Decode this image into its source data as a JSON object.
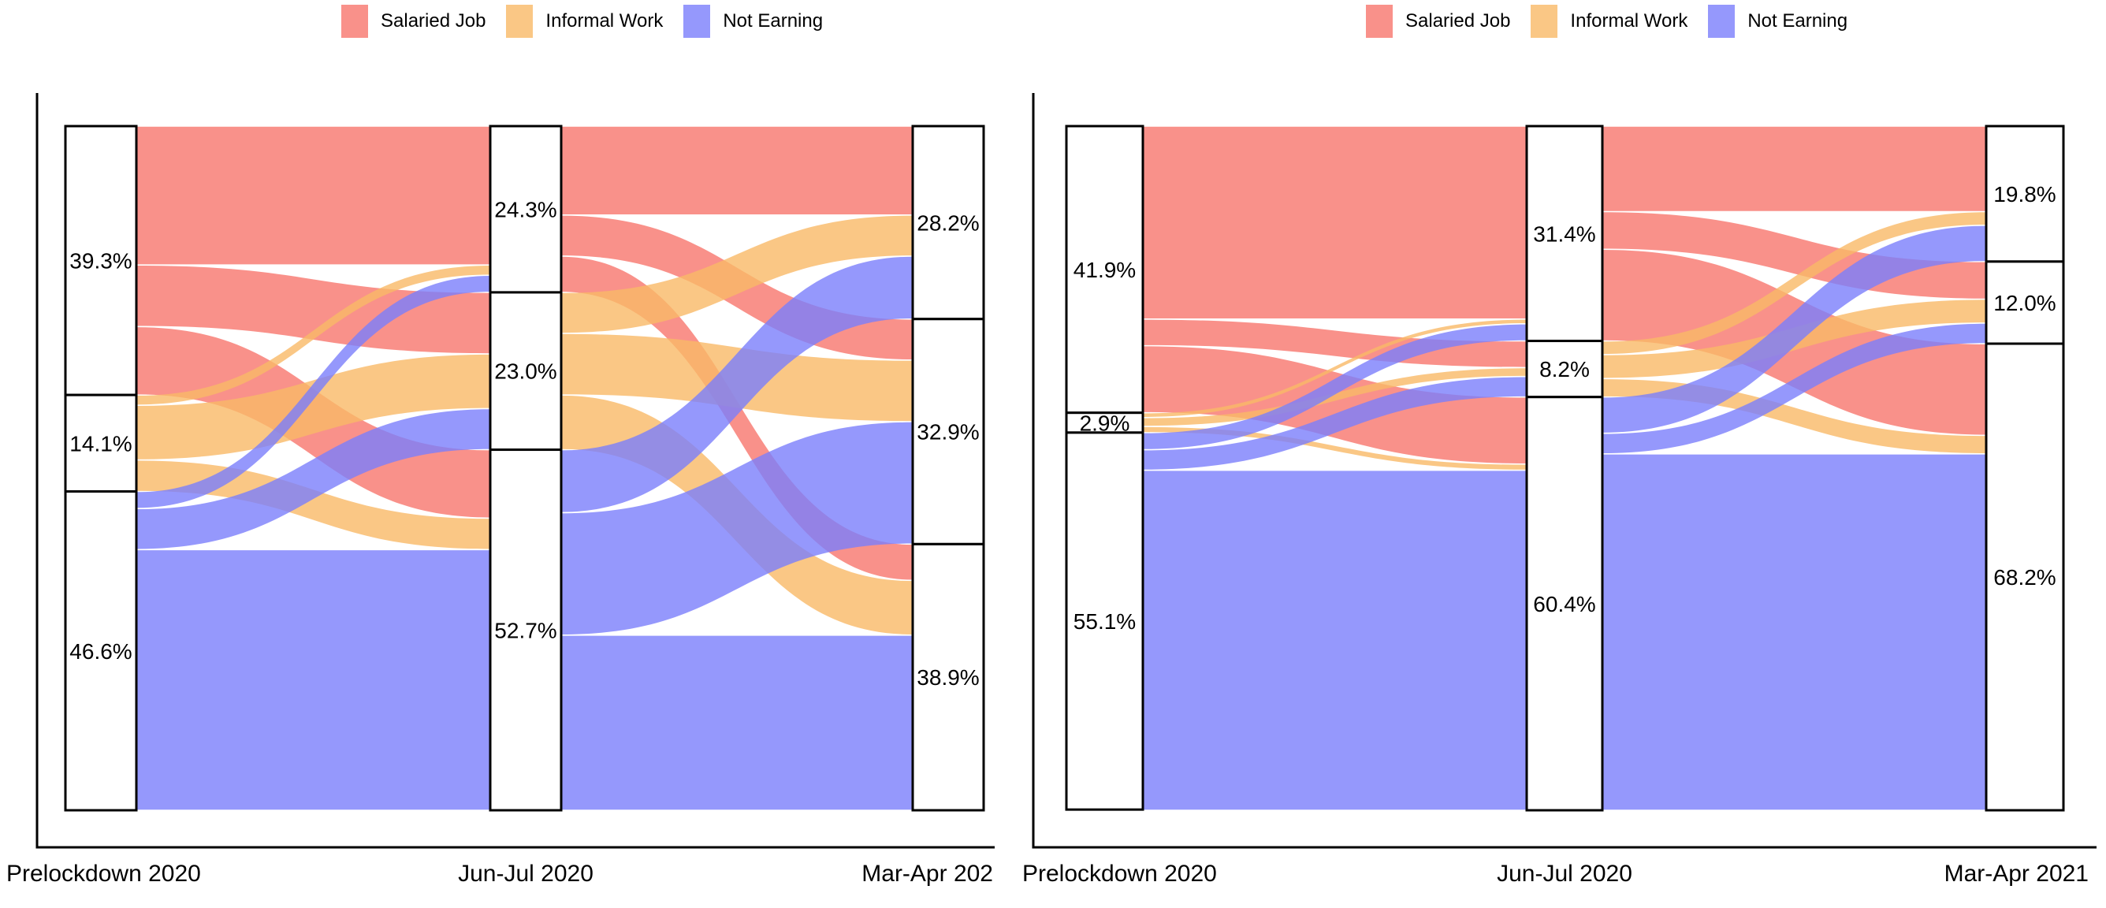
{
  "legend": {
    "items": [
      {
        "label": "Salaried Job",
        "color": "#F8766D"
      },
      {
        "label": "Informal Work",
        "color": "#F9B966"
      },
      {
        "label": "Not Earning",
        "color": "#7A7EFB"
      }
    ],
    "opacity": 0.8
  },
  "chart_data": [
    {
      "type": "sankey",
      "title": "",
      "legend_entries": [
        "Salaried Job",
        "Informal Work",
        "Not Earning"
      ],
      "columns": [
        {
          "label": "Prelockdown 2020",
          "nodes": [
            {
              "state": "Salaried Job",
              "pct": 39.3,
              "label": "39.3%"
            },
            {
              "state": "Informal Work",
              "pct": 14.1,
              "label": "14.1%"
            },
            {
              "state": "Not Earning",
              "pct": 46.6,
              "label": "46.6%"
            }
          ]
        },
        {
          "label": "Jun-Jul 2020",
          "nodes": [
            {
              "state": "Salaried Job",
              "pct": 24.3,
              "label": "24.3%"
            },
            {
              "state": "Informal Work",
              "pct": 23.0,
              "label": "23.0%"
            },
            {
              "state": "Not Earning",
              "pct": 52.7,
              "label": "52.7%"
            }
          ]
        },
        {
          "label": "Mar-Apr 202",
          "nodes": [
            {
              "state": "Salaried Job",
              "pct": 28.2,
              "label": "28.2%"
            },
            {
              "state": "Informal Work",
              "pct": 32.9,
              "label": "32.9%"
            },
            {
              "state": "Not Earning",
              "pct": 38.9,
              "label": "38.9%"
            }
          ]
        }
      ],
      "flows_estimated": [
        {
          "seg": 0,
          "from": 0,
          "to": 0,
          "value": 20.3
        },
        {
          "seg": 0,
          "from": 0,
          "to": 1,
          "value": 9.0
        },
        {
          "seg": 0,
          "from": 0,
          "to": 2,
          "value": 10.0
        },
        {
          "seg": 0,
          "from": 1,
          "to": 0,
          "value": 1.5
        },
        {
          "seg": 0,
          "from": 1,
          "to": 1,
          "value": 8.0
        },
        {
          "seg": 0,
          "from": 1,
          "to": 2,
          "value": 4.6
        },
        {
          "seg": 0,
          "from": 2,
          "to": 0,
          "value": 2.5
        },
        {
          "seg": 0,
          "from": 2,
          "to": 1,
          "value": 6.0
        },
        {
          "seg": 0,
          "from": 2,
          "to": 2,
          "value": 38.1
        },
        {
          "seg": 1,
          "from": 0,
          "to": 0,
          "value": 13.0
        },
        {
          "seg": 1,
          "from": 0,
          "to": 1,
          "value": 6.0
        },
        {
          "seg": 1,
          "from": 0,
          "to": 2,
          "value": 5.3
        },
        {
          "seg": 1,
          "from": 1,
          "to": 0,
          "value": 6.0
        },
        {
          "seg": 1,
          "from": 1,
          "to": 1,
          "value": 9.0
        },
        {
          "seg": 1,
          "from": 1,
          "to": 2,
          "value": 8.0
        },
        {
          "seg": 1,
          "from": 2,
          "to": 0,
          "value": 9.2
        },
        {
          "seg": 1,
          "from": 2,
          "to": 1,
          "value": 17.9
        },
        {
          "seg": 1,
          "from": 2,
          "to": 2,
          "value": 25.6
        }
      ]
    },
    {
      "type": "sankey",
      "title": "",
      "legend_entries": [
        "Salaried Job",
        "Informal Work",
        "Not Earning"
      ],
      "columns": [
        {
          "label": "Prelockdown 2020",
          "nodes": [
            {
              "state": "Salaried Job",
              "pct": 41.9,
              "label": "41.9%"
            },
            {
              "state": "Informal Work",
              "pct": 2.9,
              "label": "2.9%"
            },
            {
              "state": "Not Earning",
              "pct": 55.1,
              "label": "55.1%"
            }
          ]
        },
        {
          "label": "Jun-Jul 2020",
          "nodes": [
            {
              "state": "Salaried Job",
              "pct": 31.4,
              "label": "31.4%"
            },
            {
              "state": "Informal Work",
              "pct": 8.2,
              "label": "8.2%"
            },
            {
              "state": "Not Earning",
              "pct": 60.4,
              "label": "60.4%"
            }
          ]
        },
        {
          "label": "Mar-Apr 2021",
          "nodes": [
            {
              "state": "Salaried Job",
              "pct": 19.8,
              "label": "19.8%"
            },
            {
              "state": "Informal Work",
              "pct": 12.0,
              "label": "12.0%"
            },
            {
              "state": "Not Earning",
              "pct": 68.2,
              "label": "68.2%"
            }
          ]
        }
      ],
      "flows_estimated": [
        {
          "seg": 0,
          "from": 0,
          "to": 0,
          "value": 28.2
        },
        {
          "seg": 0,
          "from": 0,
          "to": 1,
          "value": 3.9
        },
        {
          "seg": 0,
          "from": 0,
          "to": 2,
          "value": 9.8
        },
        {
          "seg": 0,
          "from": 1,
          "to": 0,
          "value": 0.7
        },
        {
          "seg": 0,
          "from": 1,
          "to": 1,
          "value": 1.3
        },
        {
          "seg": 0,
          "from": 1,
          "to": 2,
          "value": 0.9
        },
        {
          "seg": 0,
          "from": 2,
          "to": 0,
          "value": 2.5
        },
        {
          "seg": 0,
          "from": 2,
          "to": 1,
          "value": 3.0
        },
        {
          "seg": 0,
          "from": 2,
          "to": 2,
          "value": 49.7
        },
        {
          "seg": 1,
          "from": 0,
          "to": 0,
          "value": 12.5
        },
        {
          "seg": 1,
          "from": 0,
          "to": 1,
          "value": 5.5
        },
        {
          "seg": 1,
          "from": 0,
          "to": 2,
          "value": 13.4
        },
        {
          "seg": 1,
          "from": 1,
          "to": 0,
          "value": 2.0
        },
        {
          "seg": 1,
          "from": 1,
          "to": 1,
          "value": 3.5
        },
        {
          "seg": 1,
          "from": 1,
          "to": 2,
          "value": 2.7
        },
        {
          "seg": 1,
          "from": 2,
          "to": 0,
          "value": 5.3
        },
        {
          "seg": 1,
          "from": 2,
          "to": 1,
          "value": 3.0
        },
        {
          "seg": 1,
          "from": 2,
          "to": 2,
          "value": 52.1
        }
      ]
    }
  ]
}
